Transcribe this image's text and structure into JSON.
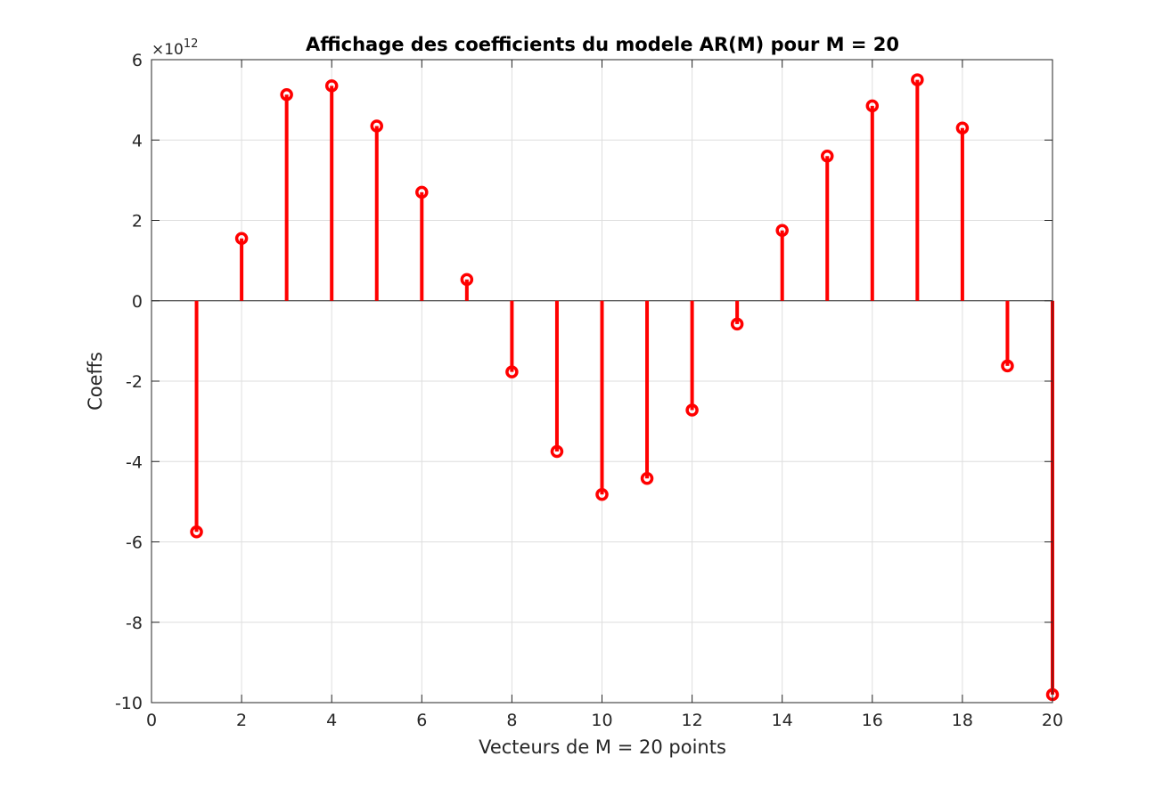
{
  "chart_data": {
    "type": "stem",
    "title": "Affichage des coefficients du modele AR(M) pour M = 20",
    "xlabel": "Vecteurs de M = 20 points",
    "ylabel": "Coeffs",
    "y_exponent_base": "×10",
    "y_exponent_power": "12",
    "xlim": [
      0,
      20
    ],
    "ylim": [
      -10,
      6
    ],
    "x_ticks": [
      "0",
      "2",
      "4",
      "6",
      "8",
      "10",
      "12",
      "14",
      "16",
      "18",
      "20"
    ],
    "y_ticks": [
      "6",
      "4",
      "2",
      "0",
      "-2",
      "-4",
      "-6",
      "-8",
      "-10"
    ],
    "grid": true,
    "color": "#ff0000",
    "series": [
      {
        "x": [
          1,
          2,
          3,
          4,
          5,
          6,
          7,
          8,
          9,
          10,
          11,
          12,
          13,
          14,
          15,
          16,
          17,
          18,
          19,
          20
        ],
        "values": [
          -5.75,
          1.55,
          5.13,
          5.35,
          4.35,
          2.7,
          0.53,
          -1.77,
          -3.75,
          -4.82,
          -4.42,
          -2.72,
          -0.58,
          1.75,
          3.6,
          4.85,
          5.5,
          4.3,
          -1.62,
          -9.8
        ]
      }
    ]
  }
}
